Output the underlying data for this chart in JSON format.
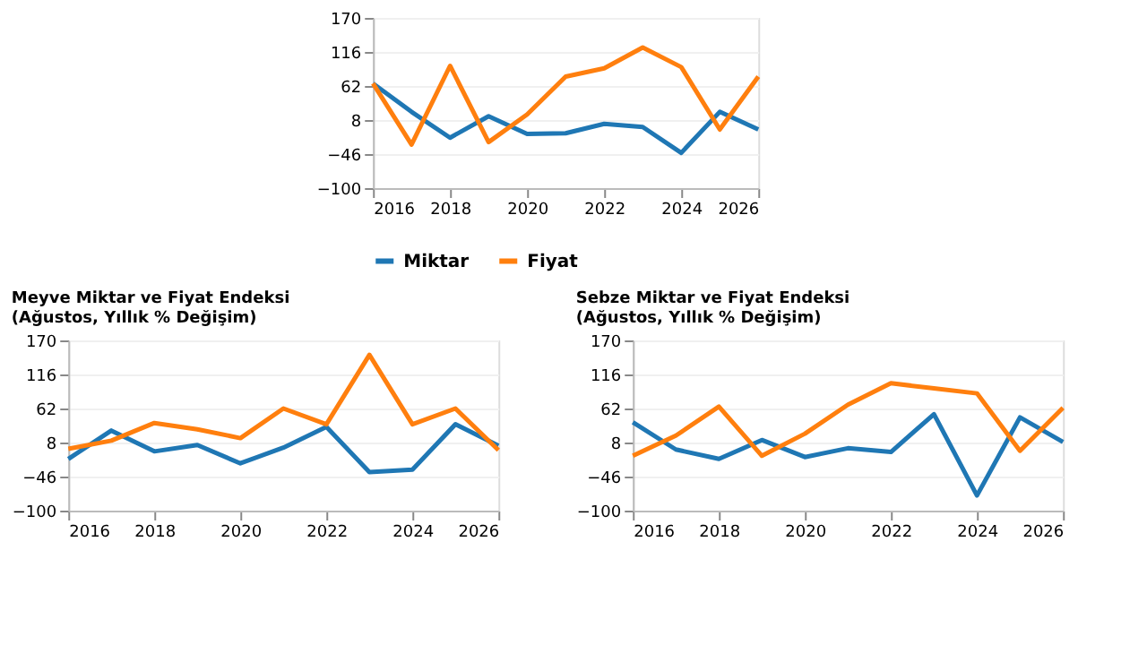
{
  "chart_data": [
    {
      "type": "line",
      "x": [
        2016,
        2017,
        2018,
        2019,
        2020,
        2021,
        2022,
        2023,
        2024,
        2025,
        2026
      ],
      "xlim": [
        2016,
        2026
      ],
      "xticks": [
        2016,
        2018,
        2020,
        2022,
        2024,
        2026
      ],
      "ylim": [
        -100,
        170
      ],
      "yticks": [
        -100,
        -46,
        8,
        62,
        116,
        170
      ],
      "grid": "y",
      "legend": "bottom",
      "marker": "none",
      "line_style": "solid",
      "series": [
        {
          "name": "Miktar",
          "color": "#1f77b4",
          "values": [
            66,
            21,
            -20,
            14,
            -14,
            -13,
            2,
            -3,
            -44,
            21,
            -7
          ]
        },
        {
          "name": "Fiyat",
          "color": "#ff7f0e",
          "values": [
            66,
            -31,
            94,
            -27,
            17,
            77,
            90,
            123,
            92,
            -7,
            77
          ]
        }
      ]
    },
    {
      "type": "line",
      "title": "Meyve Miktar ve Fiyat Endeksi (Ağustos, Yıllık % Değişim)",
      "x": [
        2016,
        2017,
        2018,
        2019,
        2020,
        2021,
        2022,
        2023,
        2024,
        2025,
        2026
      ],
      "xlim": [
        2016,
        2026
      ],
      "xticks": [
        2016,
        2018,
        2020,
        2022,
        2024,
        2026
      ],
      "ylim": [
        -100,
        170
      ],
      "yticks": [
        -100,
        -46,
        8,
        62,
        116,
        170
      ],
      "grid": "y",
      "marker": "none",
      "line_style": "solid",
      "series": [
        {
          "color": "#1f77b4",
          "values": [
            -18,
            27,
            -6,
            4,
            -25,
            0,
            33,
            -39,
            -35,
            37,
            3
          ]
        },
        {
          "color": "#ff7f0e",
          "values": [
            -2,
            11,
            39,
            29,
            15,
            62,
            37,
            147,
            37,
            62,
            -4
          ]
        }
      ]
    },
    {
      "type": "line",
      "title": "Sebze Miktar ve Fiyat Endeksi (Ağustos, Yıllık % Değişim)",
      "x": [
        2016,
        2017,
        2018,
        2019,
        2020,
        2021,
        2022,
        2023,
        2024,
        2025,
        2026
      ],
      "xlim": [
        2016,
        2026
      ],
      "xticks": [
        2016,
        2018,
        2020,
        2022,
        2024,
        2026
      ],
      "ylim": [
        -100,
        170
      ],
      "yticks": [
        -100,
        -46,
        8,
        62,
        116,
        170
      ],
      "grid": "y",
      "marker": "none",
      "line_style": "solid",
      "series": [
        {
          "color": "#1f77b4",
          "values": [
            40,
            -3,
            -18,
            12,
            -15,
            -1,
            -7,
            53,
            -76,
            48,
            9
          ]
        },
        {
          "color": "#ff7f0e",
          "values": [
            -13,
            19,
            65,
            -13,
            22,
            68,
            102,
            94,
            86,
            -5,
            63
          ]
        }
      ]
    }
  ]
}
